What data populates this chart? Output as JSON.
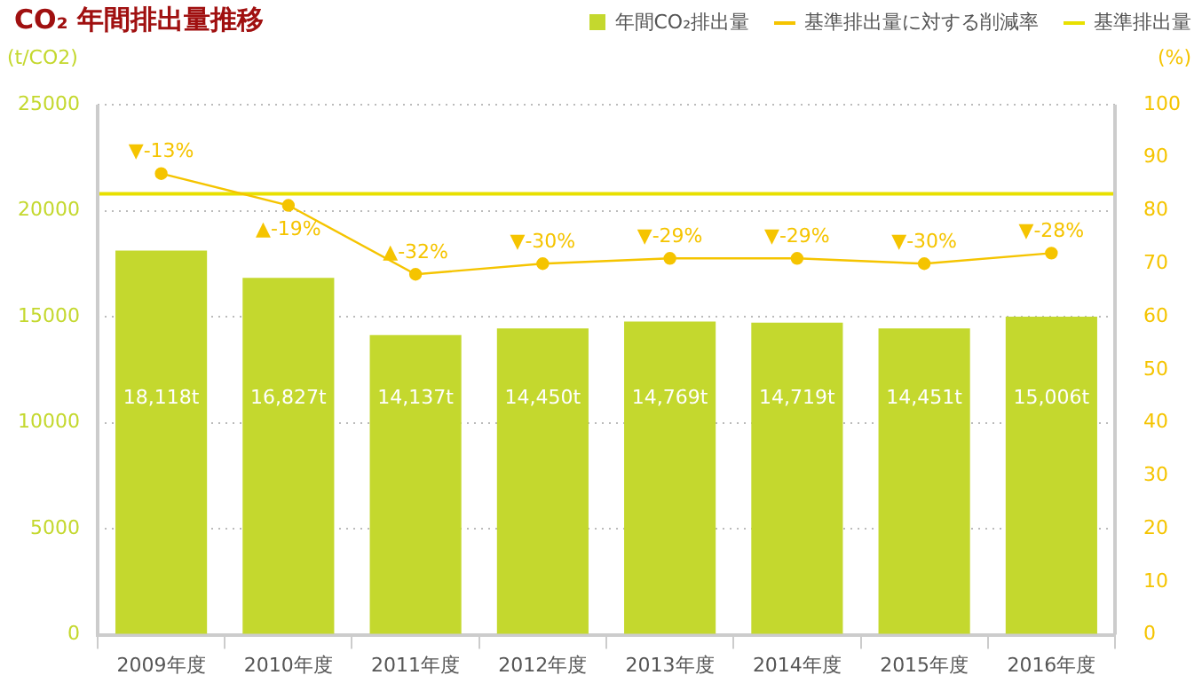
{
  "chart_data": {
    "type": "bar",
    "title": "CO₂ 年間排出量推移",
    "ylabel": "(t/CO2)",
    "y2label": "(%)",
    "categories": [
      "2009年度",
      "2010年度",
      "2011年度",
      "2012年度",
      "2013年度",
      "2014年度",
      "2015年度",
      "2016年度"
    ],
    "series": [
      {
        "name": "年間CO₂排出量",
        "color": "#c4d82e",
        "values": [
          18118,
          16827,
          14137,
          14450,
          14769,
          14719,
          14451,
          15006
        ],
        "value_labels": [
          "18,118t",
          "16,827t",
          "14,137t",
          "14,450t",
          "14,769t",
          "14,719t",
          "14,451t",
          "15,006t"
        ]
      },
      {
        "name": "基準排出量に対する削減率",
        "type": "line",
        "axis": "y2",
        "color": "#f5c400",
        "values": [
          87,
          81,
          68,
          70,
          71,
          71,
          70,
          72
        ]
      }
    ],
    "annotations": [
      {
        "text": "▼-13%",
        "x": "2009年度",
        "y": 21750
      },
      {
        "text": "▲-19%",
        "x": "2010年度",
        "y": 20250
      },
      {
        "text": "▲-32%",
        "x": "2011年度",
        "y": 17000
      },
      {
        "text": "▼-30%",
        "x": "2012年度",
        "y": 17500
      },
      {
        "text": "▼-29%",
        "x": "2013年度",
        "y": 17750
      },
      {
        "text": "▼-29%",
        "x": "2014年度",
        "y": 17750
      },
      {
        "text": "▼-30%",
        "x": "2015年度",
        "y": 17500
      },
      {
        "text": "▼-28%",
        "x": "2016年度",
        "y": 18000
      }
    ],
    "ref_lines": [
      {
        "axis": "y",
        "value": 20800,
        "label": "基準排出量",
        "color": "#e8e000"
      }
    ],
    "ylim": [
      0,
      25000
    ],
    "yticks": [
      0,
      5000,
      10000,
      15000,
      20000,
      25000
    ],
    "y2lim": [
      0,
      100
    ],
    "y2ticks": [
      0,
      10,
      20,
      30,
      40,
      50,
      60,
      70,
      80,
      90,
      100
    ],
    "grid": "y",
    "legend": "top right",
    "marker": "circle"
  }
}
